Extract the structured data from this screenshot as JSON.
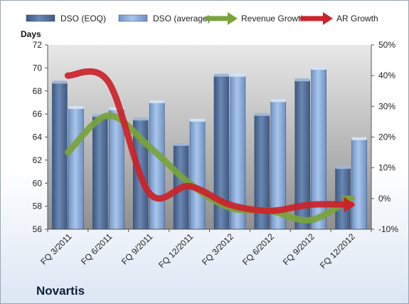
{
  "company": "Novartis",
  "chart_data": {
    "type": "bar",
    "categories": [
      "FQ 3/2011",
      "FQ 6/2011",
      "FQ 9/2011",
      "FQ 12/2011",
      "FQ 3/2012",
      "FQ 6/2012",
      "FQ 9/2012",
      "FQ 12/2012"
    ],
    "series": [
      {
        "name": "DSO (EOQ)",
        "kind": "bar",
        "axis": "left",
        "color": "#4f6d9a",
        "values": [
          68.7,
          65.8,
          65.5,
          63.3,
          69.3,
          65.9,
          68.9,
          61.3
        ]
      },
      {
        "name": "DSO (average)",
        "kind": "bar",
        "axis": "left",
        "color": "#8fb0dd",
        "values": [
          66.5,
          66.4,
          67.0,
          65.4,
          69.3,
          67.1,
          69.9,
          63.8
        ]
      },
      {
        "name": "Revenue Growth",
        "kind": "arrow-line",
        "axis": "right",
        "color": "#7aa33c",
        "values": [
          15,
          27,
          17,
          5,
          -3,
          -4,
          -7,
          0
        ]
      },
      {
        "name": "AR Growth",
        "kind": "arrow-line",
        "axis": "right",
        "color": "#cc2229",
        "values": [
          40,
          38,
          2,
          4,
          -2,
          -4,
          -2,
          -2
        ]
      }
    ],
    "ylabel": "Days",
    "ylim": [
      56,
      72
    ],
    "yticks": [
      56,
      58,
      60,
      62,
      64,
      66,
      68,
      70,
      72
    ],
    "y2lim": [
      -10,
      50
    ],
    "y2ticks": [
      "-10%",
      "0%",
      "10%",
      "20%",
      "30%",
      "40%",
      "50%"
    ],
    "y2values": [
      -10,
      0,
      10,
      20,
      30,
      40,
      50
    ],
    "legend_position": "top",
    "grid": false
  }
}
